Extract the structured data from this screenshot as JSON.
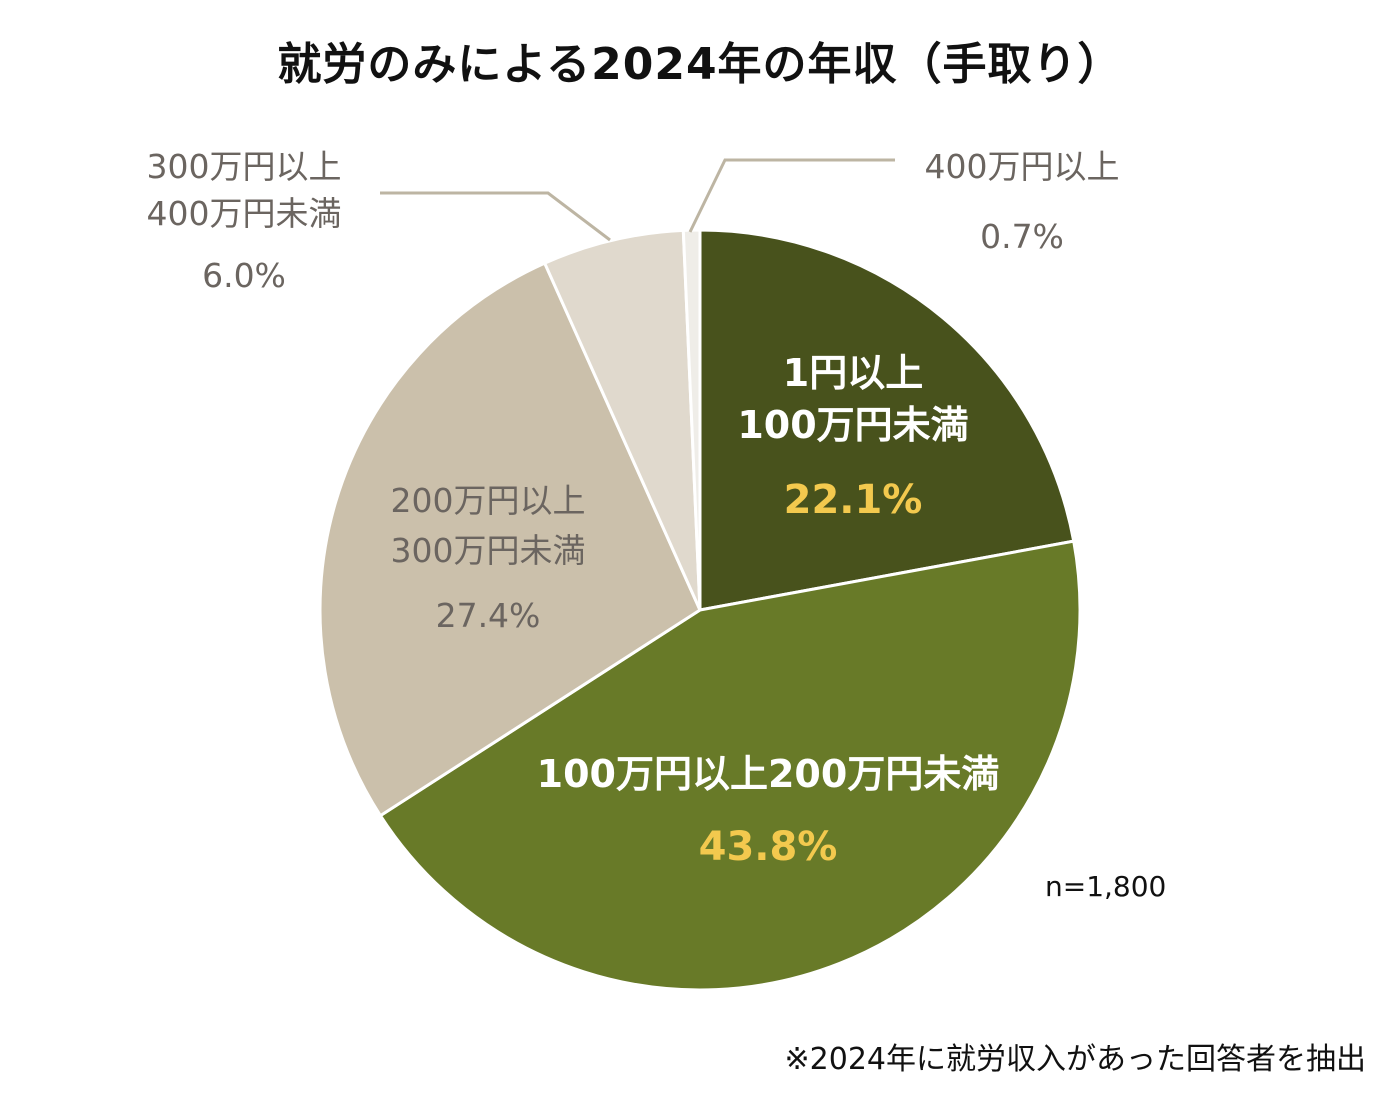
{
  "title": "就労のみによる2024年の年収（手取り）",
  "sample_size": "n=1,800",
  "footnote": "※2024年に就労収入があった回答者を抽出",
  "chart_data": {
    "type": "pie",
    "title": "就労のみによる2024年の年収（手取り）",
    "start": "12 o'clock",
    "direction": "clockwise",
    "slices": [
      {
        "label": [
          "1円以上",
          "100万円未満"
        ],
        "value": 22.1,
        "value_label": "22.1%",
        "color": "#48521c",
        "label_color": "#ffffff",
        "value_color": "#f3c94e"
      },
      {
        "label": [
          "100万円以上200万円未満"
        ],
        "value": 43.8,
        "value_label": "43.8%",
        "color": "#687a28",
        "label_color": "#ffffff",
        "value_color": "#f3c94e"
      },
      {
        "label": [
          "200万円以上",
          "300万円未満"
        ],
        "value": 27.4,
        "value_label": "27.4%",
        "color": "#cbc0ab",
        "label_color": "#6b6560",
        "value_color": "#6b6560"
      },
      {
        "label": [
          "300万円以上",
          "400万円未満"
        ],
        "value": 6.0,
        "value_label": "6.0%",
        "color": "#e0d9cd",
        "label_color": "#6b6560",
        "value_color": "#6b6560"
      },
      {
        "label": [
          "400万円以上"
        ],
        "value": 0.7,
        "value_label": "0.7%",
        "color": "#efede8",
        "label_color": "#6b6560",
        "value_color": "#6b6560"
      }
    ]
  }
}
